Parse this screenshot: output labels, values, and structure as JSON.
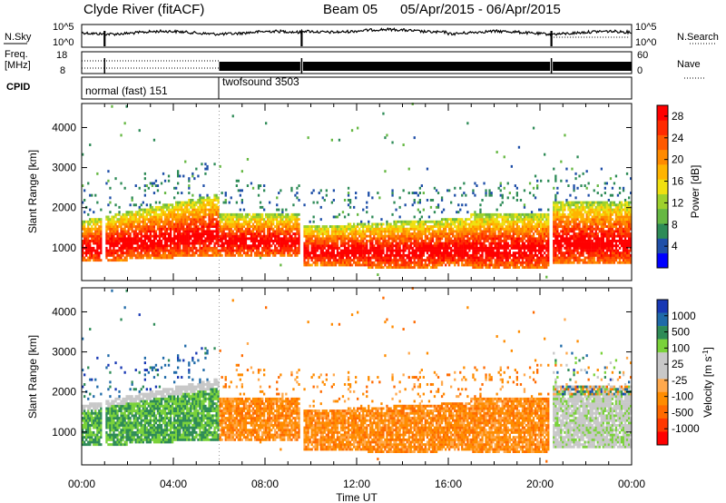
{
  "header": {
    "station": "Clyde River (fitACF)",
    "beam": "Beam 05",
    "date_range": "05/Apr/2015 - 06/Apr/2015"
  },
  "left_labels": {
    "nsky": "N.Sky",
    "freq_line1": "Freq.",
    "freq_line2": "[MHz]",
    "cpid": "CPID"
  },
  "right_labels": {
    "nsearch": "N.Search",
    "nave": "Nave"
  },
  "noise_axis": {
    "left_top": "10^5",
    "left_bottom": "10^0",
    "right_top": "10^5",
    "right_bottom": "10^0"
  },
  "freq_axis": {
    "left_top": "18",
    "left_bottom": "8",
    "right_top": "60",
    "right_bottom": "0"
  },
  "cpid_segments": [
    {
      "label": "normal (fast) 151",
      "start_hour": 0
    },
    {
      "label": "twofsound 3503",
      "start_hour": 6
    }
  ],
  "colors": {
    "power_scale": [
      "#0000ff",
      "#1f4fa8",
      "#2e8b57",
      "#66b843",
      "#9ed12c",
      "#f0e010",
      "#ffb400",
      "#ff8a00",
      "#ff5a00",
      "#ff2a00",
      "#ff0000"
    ],
    "velocity_scale": [
      "#ff0000",
      "#ff3800",
      "#ff6a00",
      "#ff8c00",
      "#ffa94d",
      "#c8c8c8",
      "#c8c8c8",
      "#7ad23a",
      "#2e8b57",
      "#1f6aa8",
      "#1838b4"
    ]
  },
  "chart_data": [
    {
      "type": "heatmap",
      "title": "Power",
      "xlabel": "Time UT",
      "ylabel": "Slant Range [km]",
      "x_tick_labels": [
        "00:00",
        "04:00",
        "08:00",
        "12:00",
        "16:00",
        "20:00",
        "00:00"
      ],
      "xlim_hours": [
        0,
        24
      ],
      "y_tick_labels": [
        "1000",
        "2000",
        "3000",
        "4000"
      ],
      "ylim": [
        180,
        4600
      ],
      "colorbar_label": "Power [dB]",
      "colorbar_ticks": [
        "4",
        "8",
        "12",
        "16",
        "20",
        "24",
        "28"
      ],
      "colorbar_range": [
        0,
        30
      ],
      "data_gap_hours": [
        1.0,
        9.6,
        20.5
      ]
    },
    {
      "type": "heatmap",
      "title": "Velocity",
      "xlabel": "Time UT",
      "ylabel": "Slant Range [km]",
      "x_tick_labels": [
        "00:00",
        "04:00",
        "08:00",
        "12:00",
        "16:00",
        "20:00",
        "00:00"
      ],
      "xlim_hours": [
        0,
        24
      ],
      "y_tick_labels": [
        "1000",
        "2000",
        "3000",
        "4000"
      ],
      "ylim": [
        180,
        4600
      ],
      "colorbar_label": "Velocity [m s^-1]",
      "colorbar_ticks": [
        "1000",
        "500",
        "100",
        "25",
        "-25",
        "-100",
        "-500",
        "-1000"
      ],
      "data_gap_hours": [
        1.0,
        9.6,
        20.5
      ]
    }
  ],
  "xaxis_title": "Time UT"
}
